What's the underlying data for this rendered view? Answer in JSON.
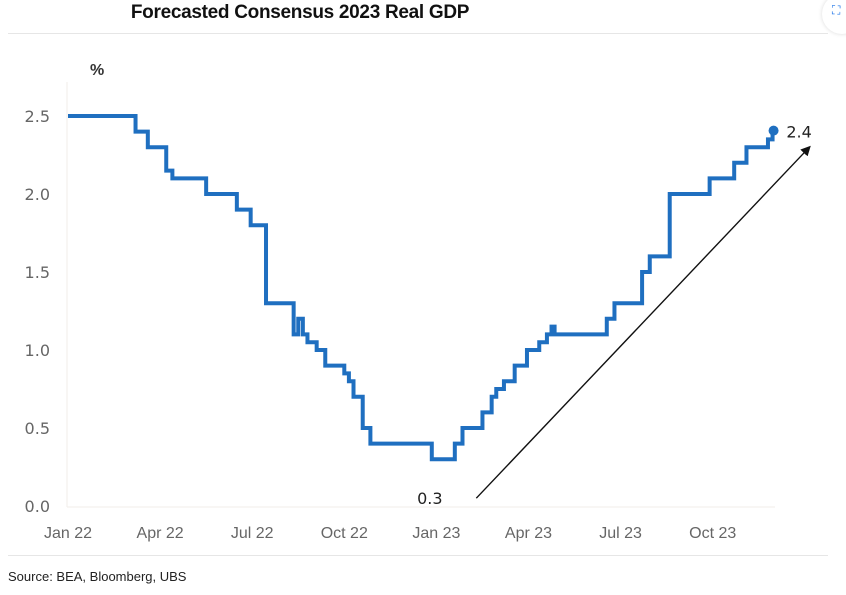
{
  "chart_data": {
    "type": "line",
    "title": "Forecasted Consensus 2023 Real GDP",
    "ylabel": "%",
    "xlabel": "",
    "source": "Source: BEA, Bloomberg, UBS",
    "ylim": [
      0.0,
      2.5
    ],
    "yticks": [
      "0.0",
      "0.5",
      "1.0",
      "1.5",
      "2.0",
      "2.5"
    ],
    "ytick_values": [
      0.0,
      0.5,
      1.0,
      1.5,
      2.0,
      2.5
    ],
    "xlim_months": [
      0,
      23.5
    ],
    "xtick_labels": [
      "Jan 22",
      "Apr 22",
      "Jul 22",
      "Oct 22",
      "Jan 23",
      "Apr 23",
      "Jul 23",
      "Oct 23"
    ],
    "xtick_months": [
      0,
      3,
      6,
      9,
      12,
      15,
      18,
      21
    ],
    "grid": false,
    "series": [
      {
        "name": "Consensus 2023 Real GDP forecast",
        "color": "#1f6fc0",
        "step": true,
        "points": [
          [
            0.0,
            2.5
          ],
          [
            2.2,
            2.4
          ],
          [
            2.6,
            2.3
          ],
          [
            3.2,
            2.15
          ],
          [
            3.4,
            2.1
          ],
          [
            4.5,
            2.0
          ],
          [
            5.5,
            1.9
          ],
          [
            5.95,
            1.8
          ],
          [
            6.45,
            1.3
          ],
          [
            7.35,
            1.1
          ],
          [
            7.5,
            1.2
          ],
          [
            7.65,
            1.1
          ],
          [
            7.8,
            1.05
          ],
          [
            8.1,
            1.0
          ],
          [
            8.38,
            0.9
          ],
          [
            9.0,
            0.85
          ],
          [
            9.15,
            0.8
          ],
          [
            9.3,
            0.7
          ],
          [
            9.6,
            0.5
          ],
          [
            9.85,
            0.4
          ],
          [
            11.85,
            0.3
          ],
          [
            12.6,
            0.4
          ],
          [
            12.85,
            0.5
          ],
          [
            13.5,
            0.6
          ],
          [
            13.8,
            0.7
          ],
          [
            13.95,
            0.75
          ],
          [
            14.2,
            0.8
          ],
          [
            14.55,
            0.9
          ],
          [
            14.95,
            1.0
          ],
          [
            15.35,
            1.05
          ],
          [
            15.6,
            1.1
          ],
          [
            15.75,
            1.15
          ],
          [
            15.85,
            1.1
          ],
          [
            17.55,
            1.2
          ],
          [
            17.8,
            1.3
          ],
          [
            18.7,
            1.5
          ],
          [
            18.95,
            1.6
          ],
          [
            19.6,
            2.0
          ],
          [
            20.9,
            2.1
          ],
          [
            21.7,
            2.2
          ],
          [
            22.1,
            2.3
          ],
          [
            22.8,
            2.35
          ],
          [
            22.95,
            2.4
          ]
        ],
        "end_marker": true
      }
    ],
    "annotations": [
      {
        "text": "2.4",
        "type": "label",
        "at": [
          23.4,
          2.4
        ]
      },
      {
        "text": "0.3",
        "type": "label",
        "at": [
          12.2,
          0.05
        ]
      },
      {
        "type": "arrow",
        "from": [
          13.3,
          0.05
        ],
        "to": [
          24.15,
          2.3
        ],
        "color": "#111111"
      }
    ]
  },
  "ui": {
    "corner_icon": "lens-icon"
  }
}
